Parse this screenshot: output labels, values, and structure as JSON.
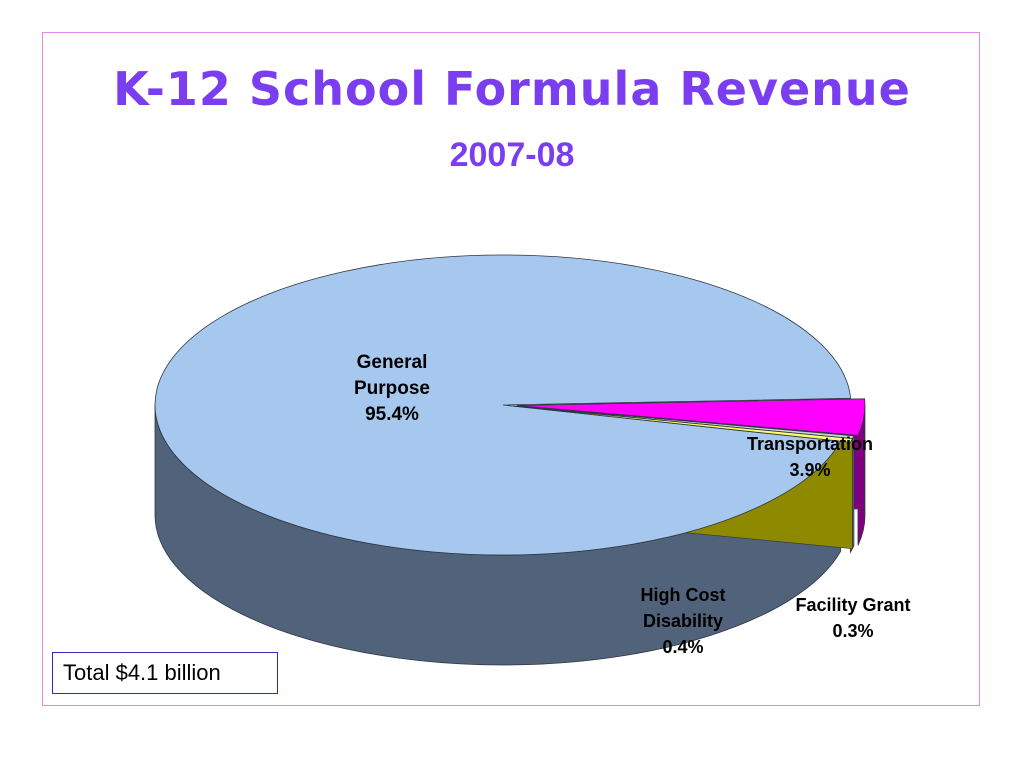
{
  "slide": {
    "title": "K-12 School Formula Revenue",
    "subtitle": "2007-08",
    "total_note": "Total $4.1 billion"
  },
  "chart_data": {
    "type": "pie",
    "title": "K-12 School Formula Revenue",
    "subtitle": "2007-08",
    "three_d": true,
    "slices": [
      {
        "name": "General Purpose",
        "value": 95.4,
        "label_lines": [
          "General",
          "Purpose",
          "95.4%"
        ],
        "color": "#a6c8ee",
        "side_color": "#51637a"
      },
      {
        "name": "Transportation",
        "value": 3.9,
        "label_lines": [
          "Transportation",
          "3.9%"
        ],
        "color": "#ff00ff",
        "side_color": "#800080"
      },
      {
        "name": "Facility Grant",
        "value": 0.3,
        "label_lines": [
          "Facility Grant",
          "0.3%"
        ],
        "color": "#c7d3e6",
        "side_color": "#6a7488"
      },
      {
        "name": "High Cost Disability",
        "value": 0.4,
        "label_lines": [
          "High Cost",
          "Disability",
          "0.4%"
        ],
        "color": "#ffff66",
        "side_color": "#8e8a00"
      }
    ],
    "total": "Total $4.1 billion"
  }
}
